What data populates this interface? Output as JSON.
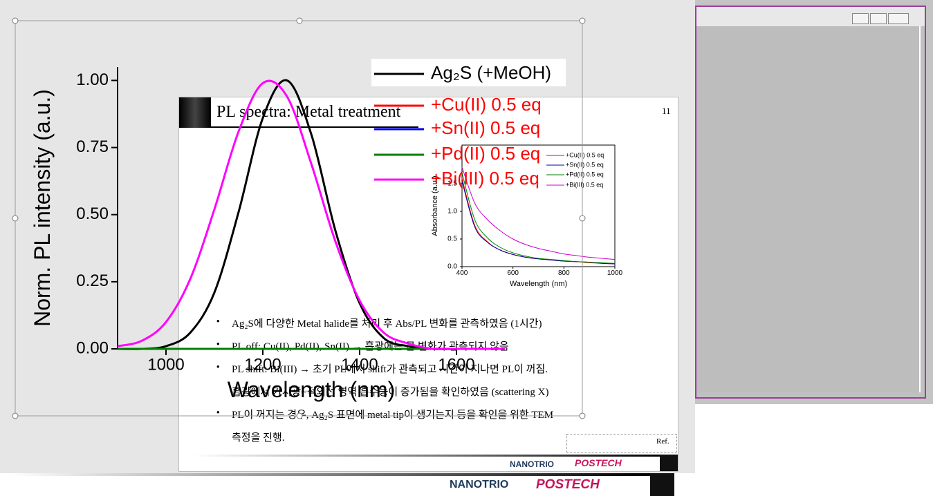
{
  "chart_data": [
    {
      "type": "line",
      "ylabel": "Norm. PL intensity (a.u.)",
      "xlabel": "Wavelength (nm)",
      "x": [
        900,
        950,
        1000,
        1050,
        1100,
        1150,
        1200,
        1250,
        1300,
        1350,
        1400,
        1450,
        1500,
        1550,
        1600,
        1650,
        1700
      ],
      "xlim": [
        900,
        1700
      ],
      "xticks": [
        1000,
        1200,
        1400,
        1600
      ],
      "ylim": [
        0,
        1.05
      ],
      "yticks": [
        {
          "value": 0,
          "label": "0.00"
        },
        {
          "value": 0.25,
          "label": "0.25"
        },
        {
          "value": 0.5,
          "label": "0.50"
        },
        {
          "value": 0.75,
          "label": "0.75"
        },
        {
          "value": 1,
          "label": "1.00"
        }
      ],
      "series": [
        {
          "name": "Ag₂S (+MeOH)",
          "color": "#000000",
          "values": [
            0,
            0,
            0.01,
            0.06,
            0.21,
            0.51,
            0.86,
            1.0,
            0.8,
            0.44,
            0.17,
            0.04,
            0.01,
            0,
            0,
            0,
            0
          ]
        },
        {
          "name": "+Cu(II) 0.5 eq",
          "color": "#ff0000",
          "values": [
            0,
            0,
            0,
            0,
            0,
            0,
            0,
            0,
            0,
            0,
            0,
            0,
            0,
            0,
            0,
            0,
            0
          ]
        },
        {
          "name": "+Sn(II) 0.5 eq",
          "color": "#0000ff",
          "values": [
            0,
            0,
            0,
            0,
            0,
            0,
            0,
            0,
            0,
            0,
            0,
            0,
            0,
            0,
            0,
            0,
            0
          ]
        },
        {
          "name": "+Pd(II) 0.5 eq",
          "color": "#008000",
          "values": [
            0,
            0,
            0,
            0,
            0,
            0,
            0,
            0,
            0,
            0,
            0,
            0,
            0,
            0,
            0,
            0,
            0
          ]
        },
        {
          "name": "+Bi(III) 0.5 eq",
          "color": "#ff00ff",
          "values": [
            0.01,
            0.03,
            0.1,
            0.26,
            0.52,
            0.81,
            0.99,
            0.94,
            0.69,
            0.4,
            0.18,
            0.06,
            0.02,
            0,
            0,
            0,
            0
          ]
        }
      ]
    },
    {
      "type": "line",
      "ylabel": "Absorbance (a.u.)",
      "xlabel": "Wavelength (nm)",
      "x": [
        400,
        450,
        500,
        550,
        600,
        650,
        700,
        750,
        800,
        850,
        900,
        950,
        1000
      ],
      "xlim": [
        400,
        1000
      ],
      "xticks": [
        400,
        600,
        800,
        1000
      ],
      "ylim": [
        0,
        2.2
      ],
      "yticks": [
        {
          "value": 0,
          "label": "0.0"
        },
        {
          "value": 0.5,
          "label": "0.5"
        },
        {
          "value": 1,
          "label": "1.0"
        },
        {
          "value": 1.5,
          "label": "1.5"
        }
      ],
      "series": [
        {
          "name": "+Cu(II) 0.5 eq",
          "color": "#ff0000",
          "values": [
            1.6,
            0.75,
            0.45,
            0.3,
            0.22,
            0.17,
            0.14,
            0.12,
            0.1,
            0.09,
            0.07,
            0.06,
            0.05
          ]
        },
        {
          "name": "+Sn(II) 0.5 eq",
          "color": "#0000aa",
          "values": [
            1.55,
            0.72,
            0.44,
            0.3,
            0.22,
            0.17,
            0.14,
            0.12,
            0.1,
            0.09,
            0.08,
            0.06,
            0.05
          ]
        },
        {
          "name": "+Pd(II) 0.5 eq",
          "color": "#008000",
          "values": [
            1.7,
            0.85,
            0.52,
            0.35,
            0.25,
            0.19,
            0.15,
            0.13,
            0.11,
            0.09,
            0.08,
            0.07,
            0.06
          ]
        },
        {
          "name": "+Bi(III) 0.5 eq",
          "color": "#cc00cc",
          "values": [
            1.8,
            1.15,
            0.85,
            0.65,
            0.5,
            0.4,
            0.33,
            0.28,
            0.23,
            0.2,
            0.17,
            0.15,
            0.13
          ]
        }
      ]
    }
  ],
  "slide": {
    "title": "PL spectra: Metal treatment",
    "page_number": "11",
    "bullets": [
      [
        "Ag₂S에 다양한 Metal halide를 처리 후 Abs/PL 변화를 관측하였음 (1시간)"
      ],
      [
        "PL off: Cu(II), Pd(II), Sn(II) → 흡광에는 큰 변화가 관측되지 않음"
      ],
      [
        "PL shift: Bi(III) → 초기 PL에서 shift가 관측되고 시간이 지나면 PL이 꺼짐.",
        "흡광에서 가시광~적외선 영역 흡수능이 증가됨을 확인하였음 (scattering X)"
      ],
      [
        "PL이 꺼지는 경우, Ag₂S 표면에 metal tip이 생기는지 등을 확인을 위한 TEM",
        "측정을 진행."
      ]
    ],
    "ref": "Ref.",
    "logo_a": "NANOTRIO",
    "logo_b": "POSTECH"
  }
}
